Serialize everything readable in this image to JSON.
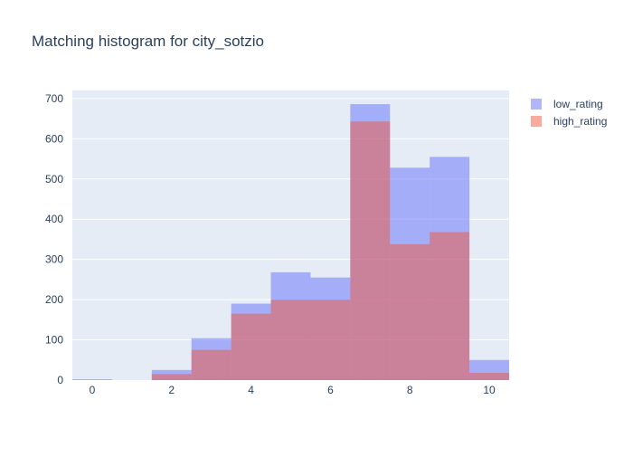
{
  "chart_data": {
    "type": "bar",
    "title": "Matching histogram for city_sotzio",
    "xlabel": "",
    "ylabel": "",
    "barmode": "overlay",
    "bin_width": 1,
    "x": [
      0,
      1,
      2,
      3,
      4,
      5,
      6,
      7,
      8,
      9,
      10
    ],
    "xlim": [
      -0.5,
      10.5
    ],
    "ylim": [
      0,
      720
    ],
    "xticks": [
      0,
      2,
      4,
      6,
      8,
      10
    ],
    "yticks": [
      0,
      100,
      200,
      300,
      400,
      500,
      600,
      700
    ],
    "grid": true,
    "legend_position": "top-right",
    "series": [
      {
        "name": "low_rating",
        "color": "#636efa",
        "opacity": 0.5,
        "values": [
          2,
          0,
          25,
          104,
          190,
          268,
          255,
          686,
          528,
          555,
          50
        ]
      },
      {
        "name": "high_rating",
        "color": "#ef553b",
        "opacity": 0.5,
        "values": [
          0,
          0,
          15,
          75,
          165,
          200,
          200,
          643,
          338,
          368,
          18
        ]
      }
    ],
    "plot_bg": "#e5ecf6",
    "gridline_color": "#ffffff"
  }
}
